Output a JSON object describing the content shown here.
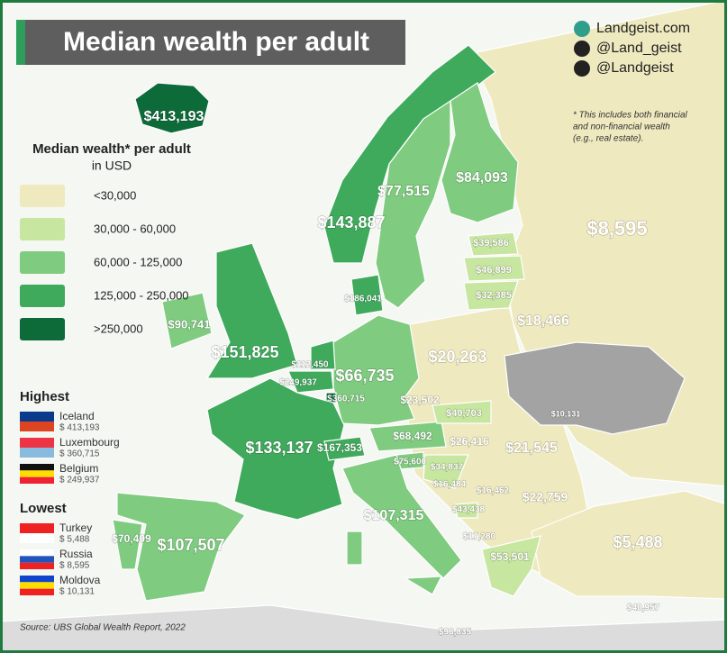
{
  "header": {
    "title": "Median wealth per adult"
  },
  "social": [
    "Landgeist.com",
    "@Land_geist",
    "@Landgeist"
  ],
  "note": [
    "* This includes both financial",
    "and non-financial wealth",
    "(e.g., real estate)."
  ],
  "legend": {
    "title": "Median wealth* per adult",
    "subtitle": "in USD",
    "items": [
      {
        "label": "<30,000",
        "color": "#efe9bf"
      },
      {
        "label": "30,000 - 60,000",
        "color": "#c7e6a0"
      },
      {
        "label": "60,000 - 125,000",
        "color": "#7fcb7f"
      },
      {
        "label": "125,000 - 250,000",
        "color": "#3faa5c"
      },
      {
        "label": ">250,000",
        "color": "#0d6b3a"
      }
    ]
  },
  "highest": {
    "title": "Highest",
    "items": [
      {
        "name": "Iceland",
        "value": "$ 413,193"
      },
      {
        "name": "Luxembourg",
        "value": "$ 360,715"
      },
      {
        "name": "Belgium",
        "value": "$ 249,937"
      }
    ]
  },
  "lowest": {
    "title": "Lowest",
    "items": [
      {
        "name": "Turkey",
        "value": "$ 5,488"
      },
      {
        "name": "Russia",
        "value": "$ 8,595"
      },
      {
        "name": "Moldova",
        "value": "$ 10,131"
      }
    ]
  },
  "map_labels": [
    "$413,193",
    "$143,887",
    "$77,515",
    "$84,093",
    "$8,595",
    "$39,586",
    "$46,899",
    "$32,385",
    "$18,466",
    "$186,041",
    "$90,741",
    "$151,825",
    "$112,450",
    "$249,937",
    "$360,715",
    "$66,735",
    "$20,263",
    "$23,502",
    "$40,703",
    "$10,131",
    "$133,137",
    "$167,353",
    "$68,492",
    "$26,416",
    "$21,545",
    "$75,600",
    "$34,837",
    "$16,484",
    "$16,462",
    "$22,759",
    "$107,315",
    "$43,438",
    "$17,280",
    "$53,501",
    "$5,488",
    "$70,409",
    "$107,507",
    "$96,835",
    "$40,957"
  ],
  "source": "Source: UBS Global Wealth Report, 2022"
}
